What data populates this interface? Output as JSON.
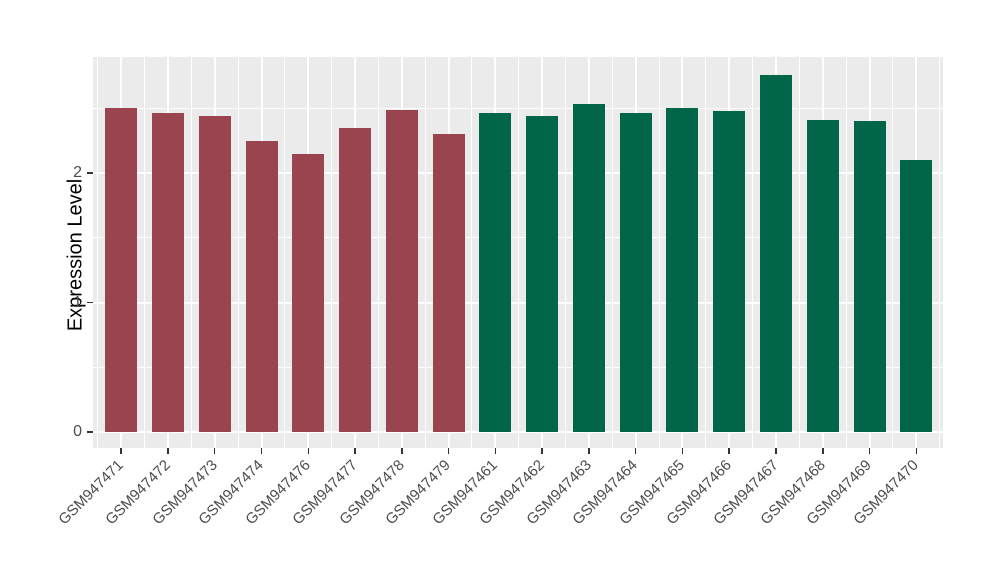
{
  "figure": {
    "background": "#FFFFFF",
    "panel_background": "#EBEBEB",
    "gridline_color": "#FFFFFF"
  },
  "chart_data": {
    "type": "bar",
    "title": "",
    "xlabel": "",
    "ylabel": "Expression Level",
    "categories": [
      "GSM947471",
      "GSM947472",
      "GSM947473",
      "GSM947474",
      "GSM947476",
      "GSM947477",
      "GSM947478",
      "GSM947479",
      "GSM947461",
      "GSM947462",
      "GSM947463",
      "GSM947464",
      "GSM947465",
      "GSM947466",
      "GSM947467",
      "GSM947468",
      "GSM947469",
      "GSM947470"
    ],
    "values": [
      2.5,
      2.46,
      2.44,
      2.25,
      2.15,
      2.35,
      2.49,
      2.3,
      2.46,
      2.44,
      2.53,
      2.46,
      2.5,
      2.48,
      2.76,
      2.41,
      2.4,
      2.1
    ],
    "groups": [
      "group1",
      "group1",
      "group1",
      "group1",
      "group1",
      "group1",
      "group1",
      "group1",
      "group2",
      "group2",
      "group2",
      "group2",
      "group2",
      "group2",
      "group2",
      "group2",
      "group2",
      "group2"
    ],
    "group_colors": {
      "group1": "#9A4450",
      "group2": "#006647"
    },
    "yticks": [
      0,
      1,
      2
    ],
    "ytick_labels": [
      "0",
      "1",
      "2"
    ],
    "y_minor_gridlines": [
      0.5,
      1.5,
      2.5
    ],
    "ylim": [
      -0.12,
      2.9
    ],
    "grid": "major+minor, white on grey panel",
    "legend": "none",
    "xtick_rotation_deg": 45
  }
}
